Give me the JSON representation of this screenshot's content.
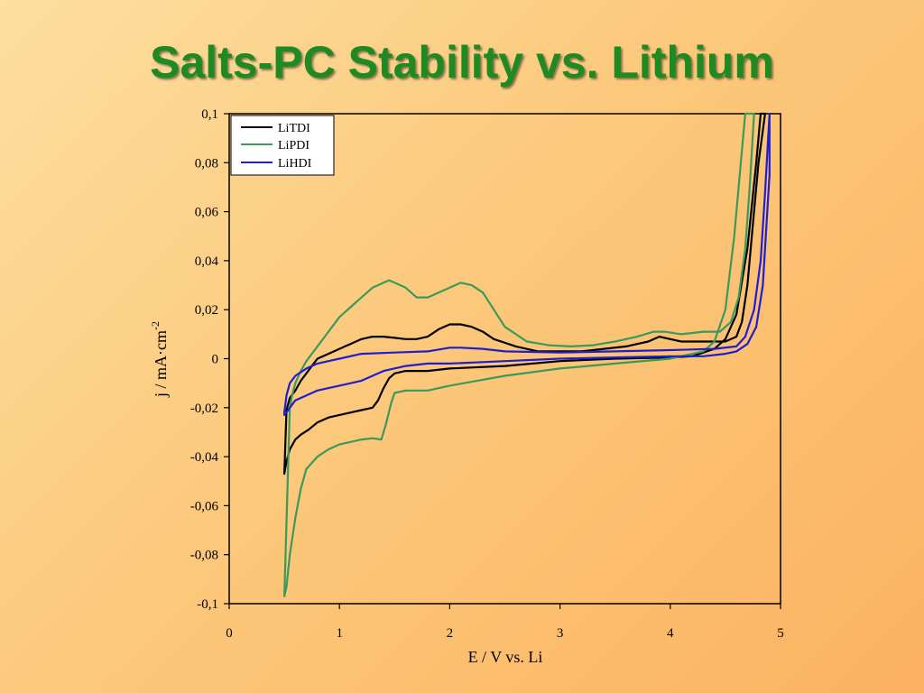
{
  "slide": {
    "title": "Salts-PC Stability vs. Lithium"
  },
  "chart_data": {
    "type": "line",
    "xlabel": "E / V vs. Li",
    "ylabel": "j / mA·cm",
    "ylabel_superscript": "-2",
    "xlim": [
      0,
      5
    ],
    "ylim": [
      -0.1,
      0.1
    ],
    "x_ticks": [
      0,
      1,
      2,
      3,
      4,
      5
    ],
    "x_tick_labels": [
      "0",
      "1",
      "2",
      "3",
      "4",
      "5"
    ],
    "y_ticks": [
      -0.1,
      -0.08,
      -0.06,
      -0.04,
      -0.02,
      0,
      0.02,
      0.04,
      0.06,
      0.08,
      0.1
    ],
    "y_tick_labels": [
      "-0,1",
      "-0,08",
      "-0,06",
      "-0,04",
      "-0,02",
      "0",
      "0,02",
      "0,04",
      "0,06",
      "0,08",
      "0,1"
    ],
    "grid": false,
    "legend_position": "top-left",
    "series": [
      {
        "name": "LiTDI",
        "color": "#000000",
        "points": [
          [
            0.5,
            -0.047
          ],
          [
            0.52,
            -0.042
          ],
          [
            0.55,
            -0.037
          ],
          [
            0.6,
            -0.033
          ],
          [
            0.65,
            -0.031
          ],
          [
            0.72,
            -0.029
          ],
          [
            0.8,
            -0.026
          ],
          [
            0.9,
            -0.024
          ],
          [
            1.0,
            -0.023
          ],
          [
            1.1,
            -0.022
          ],
          [
            1.2,
            -0.021
          ],
          [
            1.3,
            -0.02
          ],
          [
            1.35,
            -0.017
          ],
          [
            1.4,
            -0.012
          ],
          [
            1.45,
            -0.008
          ],
          [
            1.5,
            -0.006
          ],
          [
            1.6,
            -0.005
          ],
          [
            1.8,
            -0.005
          ],
          [
            2.0,
            -0.004
          ],
          [
            2.5,
            -0.003
          ],
          [
            3.0,
            -0.001
          ],
          [
            3.5,
            0.0
          ],
          [
            4.0,
            0.0005
          ],
          [
            4.2,
            0.001
          ],
          [
            4.4,
            0.004
          ],
          [
            4.5,
            0.008
          ],
          [
            4.6,
            0.018
          ],
          [
            4.7,
            0.045
          ],
          [
            4.78,
            0.08
          ],
          [
            4.82,
            0.1
          ],
          [
            4.86,
            0.1
          ],
          [
            4.8,
            0.08
          ],
          [
            4.75,
            0.055
          ],
          [
            4.7,
            0.03
          ],
          [
            4.65,
            0.015
          ],
          [
            4.6,
            0.009
          ],
          [
            4.5,
            0.007
          ],
          [
            4.3,
            0.007
          ],
          [
            4.1,
            0.007
          ],
          [
            4.0,
            0.008
          ],
          [
            3.9,
            0.009
          ],
          [
            3.8,
            0.007
          ],
          [
            3.6,
            0.005
          ],
          [
            3.4,
            0.004
          ],
          [
            3.2,
            0.003
          ],
          [
            3.0,
            0.003
          ],
          [
            2.8,
            0.003
          ],
          [
            2.6,
            0.005
          ],
          [
            2.4,
            0.008
          ],
          [
            2.3,
            0.011
          ],
          [
            2.2,
            0.013
          ],
          [
            2.1,
            0.014
          ],
          [
            2.0,
            0.014
          ],
          [
            1.9,
            0.012
          ],
          [
            1.8,
            0.009
          ],
          [
            1.7,
            0.008
          ],
          [
            1.6,
            0.008
          ],
          [
            1.5,
            0.0085
          ],
          [
            1.4,
            0.009
          ],
          [
            1.3,
            0.009
          ],
          [
            1.2,
            0.008
          ],
          [
            1.1,
            0.006
          ],
          [
            1.0,
            0.004
          ],
          [
            0.9,
            0.002
          ],
          [
            0.8,
            0.0
          ],
          [
            0.75,
            -0.003
          ],
          [
            0.7,
            -0.006
          ],
          [
            0.65,
            -0.009
          ],
          [
            0.6,
            -0.013
          ],
          [
            0.55,
            -0.016
          ],
          [
            0.52,
            -0.021
          ]
        ]
      },
      {
        "name": "LiPDI",
        "color": "#3a9a5b",
        "points": [
          [
            0.5,
            -0.097
          ],
          [
            0.52,
            -0.093
          ],
          [
            0.55,
            -0.08
          ],
          [
            0.6,
            -0.065
          ],
          [
            0.65,
            -0.053
          ],
          [
            0.7,
            -0.045
          ],
          [
            0.8,
            -0.04
          ],
          [
            0.9,
            -0.037
          ],
          [
            1.0,
            -0.035
          ],
          [
            1.1,
            -0.034
          ],
          [
            1.2,
            -0.033
          ],
          [
            1.3,
            -0.0325
          ],
          [
            1.38,
            -0.033
          ],
          [
            1.42,
            -0.027
          ],
          [
            1.47,
            -0.018
          ],
          [
            1.5,
            -0.014
          ],
          [
            1.6,
            -0.013
          ],
          [
            1.8,
            -0.013
          ],
          [
            2.0,
            -0.011
          ],
          [
            2.5,
            -0.007
          ],
          [
            3.0,
            -0.004
          ],
          [
            3.5,
            -0.002
          ],
          [
            4.0,
            0.0
          ],
          [
            4.3,
            0.003
          ],
          [
            4.4,
            0.007
          ],
          [
            4.5,
            0.02
          ],
          [
            4.58,
            0.05
          ],
          [
            4.64,
            0.08
          ],
          [
            4.68,
            0.1
          ],
          [
            4.76,
            0.1
          ],
          [
            4.72,
            0.07
          ],
          [
            4.68,
            0.045
          ],
          [
            4.62,
            0.025
          ],
          [
            4.55,
            0.015
          ],
          [
            4.45,
            0.011
          ],
          [
            4.3,
            0.011
          ],
          [
            4.1,
            0.01
          ],
          [
            3.95,
            0.011
          ],
          [
            3.85,
            0.011
          ],
          [
            3.7,
            0.009
          ],
          [
            3.5,
            0.007
          ],
          [
            3.3,
            0.0055
          ],
          [
            3.1,
            0.005
          ],
          [
            2.9,
            0.0055
          ],
          [
            2.7,
            0.007
          ],
          [
            2.5,
            0.013
          ],
          [
            2.4,
            0.02
          ],
          [
            2.3,
            0.027
          ],
          [
            2.2,
            0.03
          ],
          [
            2.1,
            0.031
          ],
          [
            2.0,
            0.029
          ],
          [
            1.9,
            0.027
          ],
          [
            1.8,
            0.025
          ],
          [
            1.7,
            0.025
          ],
          [
            1.6,
            0.029
          ],
          [
            1.5,
            0.031
          ],
          [
            1.45,
            0.032
          ],
          [
            1.4,
            0.031
          ],
          [
            1.3,
            0.029
          ],
          [
            1.2,
            0.025
          ],
          [
            1.1,
            0.021
          ],
          [
            1.0,
            0.017
          ],
          [
            0.9,
            0.011
          ],
          [
            0.8,
            0.005
          ],
          [
            0.7,
            -0.001
          ],
          [
            0.65,
            -0.005
          ],
          [
            0.6,
            -0.01
          ],
          [
            0.57,
            -0.015
          ],
          [
            0.55,
            -0.02
          ]
        ]
      },
      {
        "name": "LiHDI",
        "color": "#1f1fd0",
        "points": [
          [
            0.5,
            -0.023
          ],
          [
            0.52,
            -0.022
          ],
          [
            0.55,
            -0.02
          ],
          [
            0.6,
            -0.017
          ],
          [
            0.7,
            -0.015
          ],
          [
            0.8,
            -0.013
          ],
          [
            0.9,
            -0.012
          ],
          [
            1.0,
            -0.011
          ],
          [
            1.2,
            -0.009
          ],
          [
            1.4,
            -0.005
          ],
          [
            1.6,
            -0.003
          ],
          [
            1.8,
            -0.002
          ],
          [
            2.0,
            -0.002
          ],
          [
            2.5,
            -0.001
          ],
          [
            3.0,
            0.0
          ],
          [
            3.5,
            0.0005
          ],
          [
            4.0,
            0.001
          ],
          [
            4.3,
            0.001
          ],
          [
            4.5,
            0.002
          ],
          [
            4.6,
            0.003
          ],
          [
            4.7,
            0.006
          ],
          [
            4.78,
            0.013
          ],
          [
            4.84,
            0.03
          ],
          [
            4.88,
            0.06
          ],
          [
            4.9,
            0.075
          ],
          [
            4.9,
            0.1
          ],
          [
            4.86,
            0.068
          ],
          [
            4.82,
            0.04
          ],
          [
            4.76,
            0.02
          ],
          [
            4.68,
            0.009
          ],
          [
            4.6,
            0.005
          ],
          [
            4.4,
            0.004
          ],
          [
            4.0,
            0.0035
          ],
          [
            3.5,
            0.003
          ],
          [
            3.0,
            0.0025
          ],
          [
            2.5,
            0.003
          ],
          [
            2.3,
            0.004
          ],
          [
            2.1,
            0.0045
          ],
          [
            2.0,
            0.0045
          ],
          [
            1.8,
            0.003
          ],
          [
            1.5,
            0.0025
          ],
          [
            1.2,
            0.002
          ],
          [
            1.0,
            0.0
          ],
          [
            0.9,
            -0.001
          ],
          [
            0.8,
            -0.002
          ],
          [
            0.7,
            -0.004
          ],
          [
            0.6,
            -0.007
          ],
          [
            0.55,
            -0.01
          ],
          [
            0.52,
            -0.015
          ],
          [
            0.5,
            -0.022
          ]
        ]
      }
    ]
  }
}
